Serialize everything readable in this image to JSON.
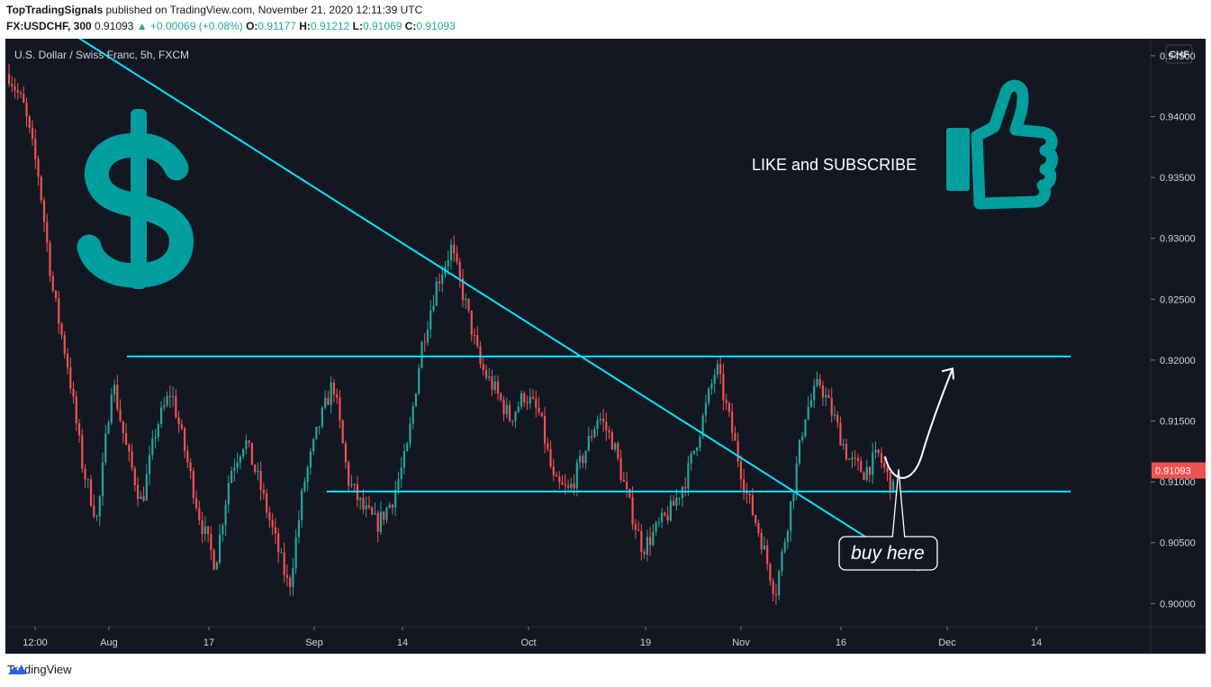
{
  "header": {
    "author": "TopTradingSignals",
    "published": "published on TradingView.com, November 21, 2020 12:11:39 UTC"
  },
  "ohlc": {
    "symbol": "FX:USDCHF, 300",
    "last": "0.91093",
    "change": "▲ +0.00069 (+0.08%)",
    "o_label": "O:",
    "o": "0.91177",
    "h_label": "H:",
    "h": "0.91212",
    "l_label": "L:",
    "l": "0.91069",
    "c_label": "C:",
    "c": "0.91093"
  },
  "legend": {
    "title": "U.S. Dollar / Swiss Franc, 5h, FXCM"
  },
  "currency_badge": "CHF",
  "last_price_tag": "0.91093",
  "annotations": {
    "like_subscribe": "LIKE and SUBSCRIBE",
    "buy_here": "buy here",
    "dollar_icon": "dollar-sign-icon",
    "thumb_icon": "thumbs-up-icon"
  },
  "footer": {
    "brand": "TradingView"
  },
  "colors": {
    "bg": "#131722",
    "up": "#26a69a",
    "down": "#ef5350",
    "trend": "#00e5ff",
    "accent": "#009e9e",
    "tag": "#ef5350"
  },
  "chart_data": {
    "type": "candlestick",
    "title": "U.S. Dollar / Swiss Franc, 5h, FXCM",
    "ylim": [
      0.8981,
      0.9464
    ],
    "y_ticks": [
      "0.94500",
      "0.94000",
      "0.93500",
      "0.93000",
      "0.92500",
      "0.92000",
      "0.91500",
      "0.91000",
      "0.90500",
      "0.90000"
    ],
    "x_ticks": [
      "12:00",
      "Aug",
      "17",
      "Sep",
      "14",
      "Oct",
      "19",
      "Nov",
      "16",
      "Dec",
      "14"
    ],
    "price_path": [
      0.9435,
      0.9408,
      0.9352,
      0.9255,
      0.9195,
      0.9112,
      0.9068,
      0.9185,
      0.9125,
      0.9082,
      0.9145,
      0.9175,
      0.9122,
      0.9068,
      0.9032,
      0.9108,
      0.9135,
      0.9098,
      0.9055,
      0.9012,
      0.9098,
      0.9145,
      0.9182,
      0.9102,
      0.9078,
      0.9065,
      0.9085,
      0.9125,
      0.9212,
      0.9262,
      0.9292,
      0.9245,
      0.9195,
      0.9175,
      0.9152,
      0.9172,
      0.9155,
      0.9098,
      0.9092,
      0.9122,
      0.9155,
      0.9132,
      0.9085,
      0.9045,
      0.9062,
      0.9078,
      0.9105,
      0.9148,
      0.9195,
      0.9145,
      0.9092,
      0.9055,
      0.9008,
      0.9078,
      0.9155,
      0.9182,
      0.9152,
      0.9118,
      0.9108,
      0.9122,
      0.9093
    ],
    "horizontal_levels": [
      0.9203,
      0.9092
    ],
    "trendline": {
      "from_date": "Jul 30 2020",
      "from_price": 0.9466,
      "to_date": "Nov 27 2020",
      "to_price": 0.9027
    },
    "projection": {
      "from_price": 0.91,
      "to_price": 0.9193,
      "direction": "up"
    },
    "last_price": 0.91093
  }
}
